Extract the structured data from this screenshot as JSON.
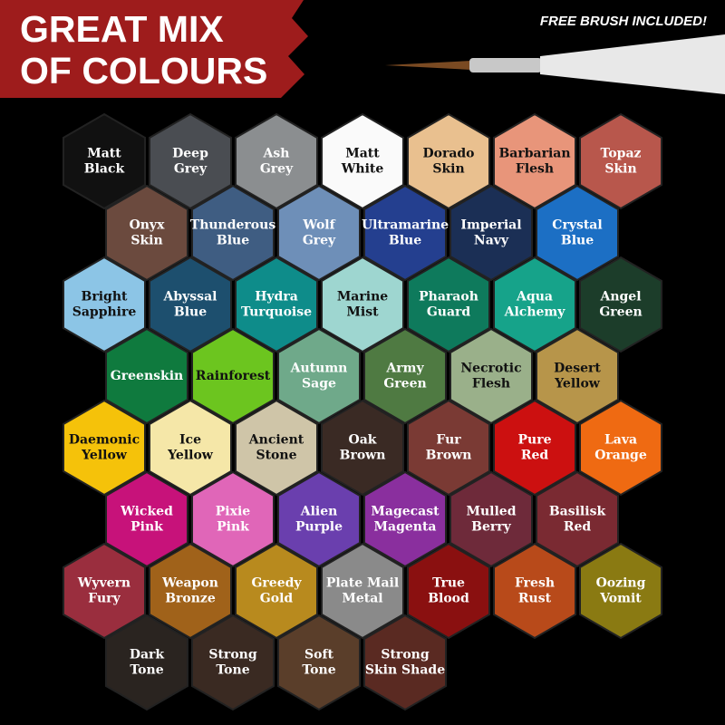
{
  "header": {
    "title_lines": [
      "GREAT MIX",
      "OF COLOURS"
    ],
    "tagline": "FREE BRUSH INCLUDED!"
  },
  "rows": [
    [
      {
        "lines": [
          "Matt",
          "Black"
        ],
        "color": "#111111"
      },
      {
        "lines": [
          "Deep",
          "Grey"
        ],
        "color": "#4a4d52"
      },
      {
        "lines": [
          "Ash",
          "Grey"
        ],
        "color": "#8b8e90"
      },
      {
        "lines": [
          "Matt",
          "White"
        ],
        "color": "#fafafa"
      },
      {
        "lines": [
          "Dorado",
          "Skin"
        ],
        "color": "#e9c08f"
      },
      {
        "lines": [
          "Barbarian",
          "Flesh"
        ],
        "color": "#e8957a"
      },
      {
        "lines": [
          "Topaz",
          "Skin"
        ],
        "color": "#b8574c"
      }
    ],
    [
      {
        "lines": [
          "Onyx",
          "Skin"
        ],
        "color": "#6b4a3e"
      },
      {
        "lines": [
          "Thunderous",
          "Blue"
        ],
        "color": "#3f5d82"
      },
      {
        "lines": [
          "Wolf",
          "Grey"
        ],
        "color": "#6e8fb8"
      },
      {
        "lines": [
          "Ultramarine",
          "Blue"
        ],
        "color": "#243f8f"
      },
      {
        "lines": [
          "Imperial",
          "Navy"
        ],
        "color": "#1b2f55"
      },
      {
        "lines": [
          "Crystal",
          "Blue"
        ],
        "color": "#1c6fc4"
      }
    ],
    [
      {
        "lines": [
          "Bright",
          "Sapphire"
        ],
        "color": "#8cc5e6"
      },
      {
        "lines": [
          "Abyssal",
          "Blue"
        ],
        "color": "#1d4f6e"
      },
      {
        "lines": [
          "Hydra",
          "Turquoise"
        ],
        "color": "#0e8c8a"
      },
      {
        "lines": [
          "Marine",
          "Mist"
        ],
        "color": "#9ed6d0"
      },
      {
        "lines": [
          "Pharaoh",
          "Guard"
        ],
        "color": "#0e7a5c"
      },
      {
        "lines": [
          "Aqua",
          "Alchemy"
        ],
        "color": "#16a38a"
      },
      {
        "lines": [
          "Angel",
          "Green"
        ],
        "color": "#1c3d2a"
      }
    ],
    [
      {
        "lines": [
          "Greenskin"
        ],
        "color": "#0f7a3e"
      },
      {
        "lines": [
          "Rainforest"
        ],
        "color": "#6cc51f"
      },
      {
        "lines": [
          "Autumn",
          "Sage"
        ],
        "color": "#6fa98a"
      },
      {
        "lines": [
          "Army",
          "Green"
        ],
        "color": "#4f7a42"
      },
      {
        "lines": [
          "Necrotic",
          "Flesh"
        ],
        "color": "#9ab08a"
      },
      {
        "lines": [
          "Desert",
          "Yellow"
        ],
        "color": "#b7954a"
      }
    ],
    [
      {
        "lines": [
          "Daemonic",
          "Yellow"
        ],
        "color": "#f5c20a"
      },
      {
        "lines": [
          "Ice",
          "Yellow"
        ],
        "color": "#f5e7a8"
      },
      {
        "lines": [
          "Ancient",
          "Stone"
        ],
        "color": "#cfc5a8"
      },
      {
        "lines": [
          "Oak",
          "Brown"
        ],
        "color": "#3a2a24"
      },
      {
        "lines": [
          "Fur",
          "Brown"
        ],
        "color": "#7a3a34"
      },
      {
        "lines": [
          "Pure",
          "Red"
        ],
        "color": "#cc1010"
      },
      {
        "lines": [
          "Lava",
          "Orange"
        ],
        "color": "#ef6a12"
      }
    ],
    [
      {
        "lines": [
          "Wicked",
          "Pink"
        ],
        "color": "#c7127a"
      },
      {
        "lines": [
          "Pixie",
          "Pink"
        ],
        "color": "#e066b8"
      },
      {
        "lines": [
          "Alien",
          "Purple"
        ],
        "color": "#6a3fae"
      },
      {
        "lines": [
          "Magecast",
          "Magenta"
        ],
        "color": "#8a2f9e"
      },
      {
        "lines": [
          "Mulled",
          "Berry"
        ],
        "color": "#6e2a3a"
      },
      {
        "lines": [
          "Basilisk",
          "Red"
        ],
        "color": "#7a2a32"
      }
    ],
    [
      {
        "lines": [
          "Wyvern",
          "Fury"
        ],
        "color": "#9a2e3e"
      },
      {
        "lines": [
          "Weapon",
          "Bronze"
        ],
        "color": "#a0621a"
      },
      {
        "lines": [
          "Greedy",
          "Gold"
        ],
        "color": "#b88a1e"
      },
      {
        "lines": [
          "Plate Mail",
          "Metal"
        ],
        "color": "#8a8a8a"
      },
      {
        "lines": [
          "True",
          "Blood"
        ],
        "color": "#8a1010"
      },
      {
        "lines": [
          "Fresh",
          "Rust"
        ],
        "color": "#b84a1a"
      },
      {
        "lines": [
          "Oozing",
          "Vomit"
        ],
        "color": "#8a7a12"
      }
    ],
    [
      {
        "lines": [
          "Dark",
          "Tone"
        ],
        "color": "#2a2420"
      },
      {
        "lines": [
          "Strong",
          "Tone"
        ],
        "color": "#3a2a22"
      },
      {
        "lines": [
          "Soft",
          "Tone"
        ],
        "color": "#5a3e2a"
      },
      {
        "lines": [
          "Strong",
          "Skin Shade"
        ],
        "color": "#5a2a22"
      }
    ]
  ]
}
